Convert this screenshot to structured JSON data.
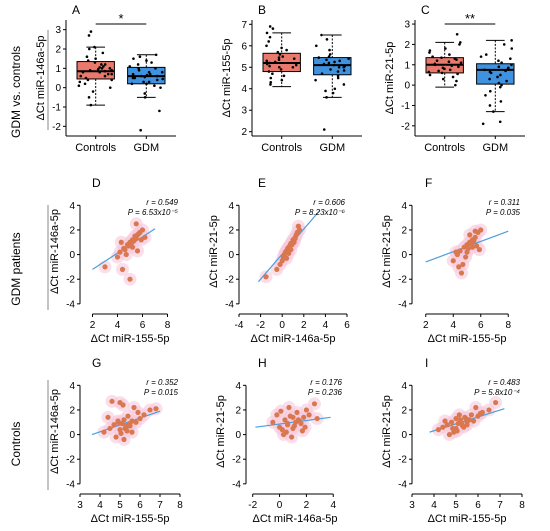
{
  "row_labels": [
    "GDM vs. controls",
    "GDM patients",
    "Controls"
  ],
  "chart_data": [
    {
      "panel": "A",
      "type": "box",
      "categories": [
        "Controls",
        "GDM"
      ],
      "ylabel": "ΔCt miR-146a-5p",
      "xlabel": "",
      "ylim": [
        -2.5,
        3.5
      ],
      "yticks": [
        -2,
        -1,
        0,
        1,
        2,
        3
      ],
      "significance": "*",
      "box_colors": [
        "#e8796c",
        "#3e92e0"
      ],
      "boxes": [
        {
          "name": "Controls",
          "min": -0.9,
          "q1": 0.45,
          "median": 0.85,
          "q3": 1.35,
          "max": 2.1
        },
        {
          "name": "GDM",
          "min": -0.5,
          "q1": 0.2,
          "median": 0.6,
          "q3": 1.05,
          "max": 1.7
        }
      ],
      "points": [
        [
          0.1,
          0.2,
          0.3,
          0.4,
          0.5,
          0.6,
          0.7,
          0.8,
          0.9,
          1.0,
          1.1,
          1.2,
          1.3,
          1.4,
          1.5,
          0.8,
          0.9,
          1.0,
          0.6,
          0.7,
          1.6,
          1.8,
          2.0,
          2.1,
          -0.2,
          -0.5,
          -0.9,
          0.0,
          1.2,
          0.4,
          2.7,
          2.9,
          0.85,
          0.95,
          1.05
        ],
        [
          0.0,
          0.1,
          0.2,
          0.3,
          0.4,
          0.5,
          0.6,
          0.7,
          0.8,
          0.9,
          1.0,
          1.1,
          1.2,
          1.3,
          1.4,
          0.5,
          0.6,
          0.7,
          -0.3,
          -0.5,
          1.5,
          1.7,
          -1.2,
          -2.2,
          0.2,
          0.8,
          1.0,
          0.3,
          0.65,
          0.55,
          1.6,
          0.45
        ]
      ]
    },
    {
      "panel": "B",
      "type": "box",
      "categories": [
        "Controls",
        "GDM"
      ],
      "ylabel": "ΔCt miR-155-5p",
      "xlabel": "",
      "ylim": [
        1.8,
        7.2
      ],
      "yticks": [
        2,
        3,
        4,
        5,
        6,
        7
      ],
      "significance": "",
      "box_colors": [
        "#e8796c",
        "#3e92e0"
      ],
      "boxes": [
        {
          "name": "Controls",
          "min": 4.1,
          "q1": 4.8,
          "median": 5.2,
          "q3": 5.65,
          "max": 6.6
        },
        {
          "name": "GDM",
          "min": 3.6,
          "q1": 4.65,
          "median": 5.1,
          "q3": 5.45,
          "max": 6.5
        }
      ],
      "points": [
        [
          4.2,
          4.4,
          4.6,
          4.8,
          5.0,
          5.1,
          5.2,
          5.3,
          5.4,
          5.5,
          5.6,
          5.8,
          6.0,
          6.2,
          6.4,
          6.6,
          4.9,
          5.0,
          5.15,
          5.25,
          5.35,
          5.45,
          4.7,
          4.5,
          6.9,
          6.8,
          5.7,
          5.9,
          4.3,
          5.05
        ],
        [
          3.6,
          3.8,
          4.0,
          4.2,
          4.4,
          4.6,
          4.8,
          5.0,
          5.1,
          5.2,
          5.3,
          5.4,
          5.5,
          5.6,
          5.8,
          6.0,
          6.3,
          6.5,
          4.9,
          5.05,
          5.15,
          5.25,
          4.7,
          4.5,
          2.1,
          5.35,
          5.45,
          4.85,
          3.9,
          5.0
        ]
      ]
    },
    {
      "panel": "C",
      "type": "box",
      "categories": [
        "Controls",
        "GDM"
      ],
      "ylabel": "ΔCt miR-21-5p",
      "xlabel": "",
      "ylim": [
        -2.5,
        3.2
      ],
      "yticks": [
        -2,
        -1,
        0,
        1,
        2,
        3
      ],
      "significance": "**",
      "box_colors": [
        "#e8796c",
        "#3e92e0"
      ],
      "boxes": [
        {
          "name": "Controls",
          "min": -0.1,
          "q1": 0.6,
          "median": 1.0,
          "q3": 1.35,
          "max": 2.1
        },
        {
          "name": "GDM",
          "min": -1.3,
          "q1": 0.05,
          "median": 0.75,
          "q3": 1.05,
          "max": 2.2
        }
      ],
      "points": [
        [
          0.0,
          0.2,
          0.4,
          0.5,
          0.6,
          0.7,
          0.8,
          0.9,
          1.0,
          1.1,
          1.2,
          1.3,
          1.4,
          1.5,
          1.6,
          1.8,
          2.0,
          2.1,
          0.85,
          0.95,
          1.05,
          1.15,
          0.65,
          0.75,
          2.5,
          1.25,
          0.3,
          1.7,
          0.55,
          1.35
        ],
        [
          -1.3,
          -1.0,
          -0.8,
          -0.5,
          -0.3,
          0.0,
          0.2,
          0.4,
          0.5,
          0.6,
          0.7,
          0.8,
          0.9,
          1.0,
          1.1,
          1.3,
          1.5,
          1.8,
          2.0,
          2.2,
          -1.8,
          -1.9,
          0.65,
          0.75,
          0.85,
          0.3,
          1.2,
          0.1,
          -0.1,
          1.4
        ]
      ]
    },
    {
      "panel": "D",
      "type": "scatter",
      "xlabel": "ΔCt miR-155-5p",
      "ylabel": "ΔCt miR-146a-5p",
      "xlim": [
        1,
        9
      ],
      "ylim": [
        -4.5,
        5
      ],
      "xticks": [
        2,
        4,
        6,
        8
      ],
      "yticks": [
        -4,
        -2,
        0,
        2,
        4
      ],
      "annotation": {
        "r": "r = 0.549",
        "p": "P = 6.53x10⁻⁵"
      },
      "trend": {
        "x": [
          2.0,
          7.0
        ],
        "y": [
          -1.2,
          2.1
        ]
      },
      "x": [
        4.2,
        4.5,
        4.8,
        5.0,
        5.2,
        5.4,
        5.6,
        5.8,
        6.0,
        4.6,
        5.1,
        5.3,
        5.5,
        4.9,
        4.0,
        5.7,
        6.2,
        5.2,
        4.4,
        5.0,
        5.6,
        3.0,
        4.3,
        5.9,
        5.5,
        4.7
      ],
      "y": [
        0.2,
        0.5,
        0.8,
        1.0,
        1.2,
        1.5,
        1.6,
        1.8,
        2.0,
        0.4,
        0.9,
        1.1,
        1.3,
        0.7,
        -0.2,
        1.7,
        1.4,
        0.6,
        -1.2,
        -2.0,
        0.3,
        -1.0,
        1.0,
        1.2,
        2.5,
        0.0
      ]
    },
    {
      "panel": "E",
      "type": "scatter",
      "xlabel": "ΔCt miR-146a-5p",
      "ylabel": "ΔCt miR-21-5p",
      "xlim": [
        -4,
        6
      ],
      "ylim": [
        -4.5,
        5
      ],
      "xticks": [
        -4,
        -2,
        0,
        2,
        4,
        6
      ],
      "yticks": [
        -4,
        -2,
        0,
        2,
        4
      ],
      "annotation": {
        "r": "r = 0.606",
        "p": "P = 8.23x10⁻⁶"
      },
      "trend": {
        "x": [
          -2.2,
          3.5
        ],
        "y": [
          -2.2,
          3.6
        ]
      },
      "x": [
        -1.5,
        -0.5,
        0.0,
        0.2,
        0.4,
        0.6,
        0.8,
        1.0,
        1.2,
        1.4,
        0.5,
        0.9,
        1.1,
        0.3,
        0.7,
        1.3,
        1.6,
        0.1,
        -0.2,
        0.8,
        1.0,
        1.5,
        0.6,
        0.4,
        1.2,
        0.9
      ],
      "y": [
        -1.8,
        -1.2,
        -0.5,
        0.0,
        0.3,
        0.6,
        0.9,
        1.2,
        1.4,
        1.8,
        0.5,
        0.8,
        1.0,
        0.2,
        0.7,
        1.6,
        2.0,
        -0.2,
        -0.8,
        0.4,
        1.1,
        2.3,
        0.1,
        -0.3,
        1.3,
        0.9
      ]
    },
    {
      "panel": "F",
      "type": "scatter",
      "xlabel": "ΔCt miR-155-5p",
      "ylabel": "ΔCt miR-21-5p",
      "xlim": [
        1,
        9
      ],
      "ylim": [
        -4.5,
        5
      ],
      "xticks": [
        2,
        4,
        6,
        8
      ],
      "yticks": [
        -4,
        -2,
        0,
        2,
        4
      ],
      "annotation": {
        "r": "r = 0.311",
        "p": "P = 0.035"
      },
      "trend": {
        "x": [
          2.0,
          8.0
        ],
        "y": [
          -0.6,
          1.9
        ]
      },
      "x": [
        4.0,
        4.3,
        4.5,
        4.8,
        5.0,
        5.2,
        5.4,
        5.6,
        5.8,
        6.0,
        4.6,
        5.1,
        5.3,
        4.9,
        5.5,
        5.7,
        4.4,
        5.0,
        5.2,
        5.9,
        4.7,
        5.4,
        4.2,
        5.6
      ],
      "y": [
        -0.5,
        0.0,
        0.3,
        0.6,
        0.8,
        1.0,
        1.2,
        1.4,
        1.8,
        2.0,
        -1.5,
        0.5,
        0.9,
        -0.2,
        1.1,
        0.7,
        -1.0,
        0.2,
        1.6,
        0.4,
        -0.8,
        0.6,
        0.2,
        1.9
      ]
    },
    {
      "panel": "G",
      "type": "scatter",
      "xlabel": "ΔCt miR-155-5p",
      "ylabel": "ΔCt miR-146a-5p",
      "xlim": [
        3,
        8
      ],
      "ylim": [
        -4.5,
        5
      ],
      "xticks": [
        3,
        4,
        5,
        6,
        7,
        8
      ],
      "yticks": [
        -4,
        -2,
        0,
        2,
        4
      ],
      "annotation": {
        "r": "r = 0.352",
        "p": "P = 0.015"
      },
      "trend": {
        "x": [
          3.6,
          7.0
        ],
        "y": [
          0.0,
          1.9
        ]
      },
      "x": [
        4.2,
        4.5,
        4.7,
        4.9,
        5.0,
        5.1,
        5.2,
        5.3,
        5.4,
        5.5,
        5.6,
        5.7,
        5.8,
        6.0,
        6.2,
        6.5,
        4.8,
        5.05,
        5.25,
        5.45,
        4.6,
        5.15,
        5.35,
        5.9,
        4.4,
        5.0,
        5.5,
        5.2,
        6.8,
        4.9,
        5.3,
        5.6
      ],
      "y": [
        0.2,
        0.5,
        0.8,
        1.0,
        0.4,
        0.9,
        1.2,
        0.6,
        1.5,
        0.7,
        1.1,
        2.2,
        1.0,
        1.3,
        1.6,
        2.0,
        -0.2,
        0.1,
        0.5,
        0.8,
        2.7,
        2.4,
        0.3,
        1.8,
        1.4,
        2.6,
        0.9,
        -0.4,
        2.1,
        1.1,
        0.7,
        0.2
      ]
    },
    {
      "panel": "H",
      "type": "scatter",
      "xlabel": "ΔCt miR-146a-5p",
      "ylabel": "ΔCt miR-21-5p",
      "xlim": [
        -2.5,
        4.8
      ],
      "ylim": [
        -4.5,
        5
      ],
      "xticks": [
        -2,
        0,
        2,
        4
      ],
      "yticks": [
        -4,
        -2,
        0,
        2,
        4
      ],
      "annotation": {
        "r": "r = 0.176",
        "p": "P = 0.236"
      },
      "trend": {
        "x": [
          -1.8,
          3.8
        ],
        "y": [
          0.6,
          1.4
        ]
      },
      "x": [
        -0.5,
        0.0,
        0.2,
        0.4,
        0.6,
        0.8,
        1.0,
        1.2,
        1.4,
        1.6,
        1.8,
        2.0,
        2.2,
        2.6,
        0.5,
        0.9,
        1.1,
        1.3,
        0.7,
        0.3,
        1.5,
        1.7,
        0.1,
        2.8,
        1.0,
        0.6,
        1.9,
        -0.2
      ],
      "y": [
        1.0,
        0.6,
        0.4,
        1.2,
        0.8,
        1.5,
        0.5,
        1.0,
        1.2,
        0.9,
        1.4,
        2.0,
        1.6,
        2.5,
        0.2,
        -0.2,
        0.7,
        1.8,
        2.2,
        0.0,
        1.1,
        0.3,
        1.9,
        1.3,
        1.4,
        0.9,
        0.6,
        1.6
      ]
    },
    {
      "panel": "I",
      "type": "scatter",
      "xlabel": "ΔCt miR-155-5p",
      "ylabel": "ΔCt miR-21-5p",
      "xlim": [
        3,
        8
      ],
      "ylim": [
        -4.5,
        5
      ],
      "xticks": [
        3,
        4,
        5,
        6,
        7,
        8
      ],
      "yticks": [
        -4,
        -2,
        0,
        2,
        4
      ],
      "annotation": {
        "r": "r = 0.483",
        "p": "P = 5.8x10⁻⁴"
      },
      "trend": {
        "x": [
          3.8,
          7.2
        ],
        "y": [
          0.2,
          2.1
        ]
      },
      "x": [
        4.2,
        4.4,
        4.6,
        4.8,
        5.0,
        5.1,
        5.2,
        5.3,
        5.4,
        5.5,
        5.6,
        5.7,
        5.8,
        6.0,
        6.2,
        6.5,
        6.8,
        4.9,
        5.05,
        5.25,
        5.45,
        4.7,
        5.15,
        5.35,
        5.9,
        4.5,
        5.0,
        5.5,
        6.1,
        4.85
      ],
      "y": [
        0.4,
        0.6,
        0.8,
        1.0,
        0.5,
        0.9,
        1.2,
        0.7,
        1.4,
        1.0,
        1.2,
        1.6,
        1.1,
        1.5,
        1.8,
        2.0,
        2.6,
        0.2,
        0.3,
        0.9,
        1.3,
        0.0,
        1.6,
        0.6,
        2.2,
        1.1,
        1.3,
        0.8,
        1.7,
        0.5
      ]
    }
  ]
}
